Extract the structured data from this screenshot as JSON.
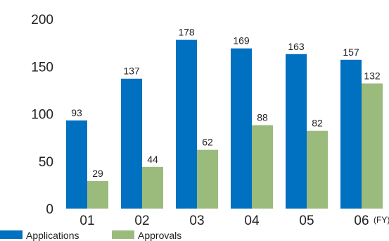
{
  "chart_data": {
    "type": "bar",
    "categories": [
      "01",
      "02",
      "03",
      "04",
      "05",
      "06"
    ],
    "series": [
      {
        "name": "Applications",
        "color": "#0070C0",
        "values": [
          93,
          137,
          178,
          169,
          163,
          157
        ]
      },
      {
        "name": "Approvals",
        "color": "#9BBB7D",
        "values": [
          29,
          44,
          62,
          88,
          82,
          132
        ]
      }
    ],
    "x_unit": "(FY)",
    "ylim": [
      0,
      200
    ],
    "yticks": [
      0,
      50,
      100,
      150,
      200
    ],
    "grid": false,
    "legend_position": "bottom-left",
    "data_labels": true
  }
}
